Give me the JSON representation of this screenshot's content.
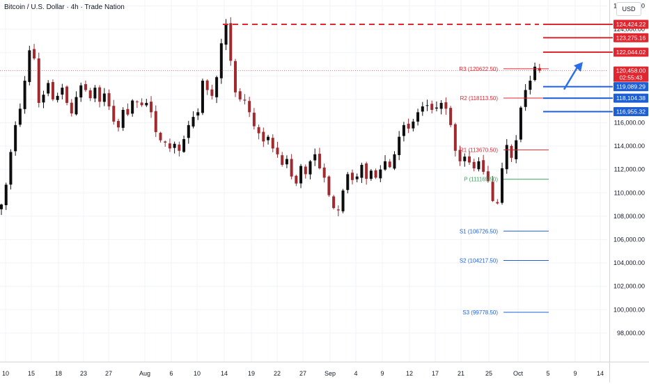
{
  "chart_title": "Bitcoin / U.S. Dollar · 4h · Trade Nation",
  "currency": "USD",
  "colors": {
    "up": "#0d0d0d",
    "down": "#a12a2e",
    "resistance": "#e0262f",
    "support": "#1f5fd6",
    "pivot": "#3aa35c",
    "grid": "#f0f3fa"
  },
  "chart_data": {
    "type": "candlestick",
    "title": "Bitcoin / U.S. Dollar · 4h · Trade Nation",
    "ylim": [
      96700,
      126800
    ],
    "yticks": [
      "126,000.00",
      "124,000.00",
      "122,000.00",
      "120,000.00",
      "118,000.00",
      "116,000.00",
      "114,000.00",
      "112,000.00",
      "110,000.00",
      "108,000.00",
      "106,000.00",
      "104,000.00",
      "102,000.00",
      "100,000.00",
      "98,000.00"
    ],
    "x_ticks": [
      "10",
      "15",
      "18",
      "23",
      "27",
      "Aug",
      "6",
      "10",
      "14",
      "19",
      "22",
      "27",
      "Sep",
      "4",
      "9",
      "12",
      "17",
      "21",
      "25",
      "Oct",
      "5",
      "9",
      "14"
    ],
    "price_path": [
      [
        0,
        109000
      ],
      [
        1,
        110700
      ],
      [
        2,
        113500
      ],
      [
        3,
        115800
      ],
      [
        4,
        117200
      ],
      [
        5,
        119600
      ],
      [
        6,
        122200
      ],
      [
        7,
        121500
      ],
      [
        8,
        117700
      ],
      [
        9,
        118400
      ],
      [
        10,
        119400
      ],
      [
        11,
        118000
      ],
      [
        12,
        118300
      ],
      [
        13,
        119000
      ],
      [
        14,
        117700
      ],
      [
        15,
        116800
      ],
      [
        16,
        118200
      ],
      [
        17,
        119200
      ],
      [
        18,
        118800
      ],
      [
        19,
        118100
      ],
      [
        20,
        119000
      ],
      [
        21,
        117800
      ],
      [
        22,
        118500
      ],
      [
        23,
        117400
      ],
      [
        24,
        116100
      ],
      [
        25,
        115600
      ],
      [
        26,
        117100
      ],
      [
        27,
        116700
      ],
      [
        28,
        117900
      ],
      [
        29,
        117800
      ],
      [
        30,
        117500
      ],
      [
        31,
        117700
      ],
      [
        32,
        116900
      ],
      [
        33,
        115200
      ],
      [
        34,
        114500
      ],
      [
        35,
        114300
      ],
      [
        36,
        113800
      ],
      [
        37,
        114200
      ],
      [
        38,
        113600
      ],
      [
        39,
        114600
      ],
      [
        40,
        115800
      ],
      [
        41,
        116500
      ],
      [
        42,
        116900
      ],
      [
        43,
        119600
      ],
      [
        44,
        118800
      ],
      [
        45,
        118300
      ],
      [
        46,
        119900
      ],
      [
        47,
        122800
      ],
      [
        48,
        124400
      ],
      [
        49,
        121300
      ],
      [
        50,
        118600
      ],
      [
        51,
        118000
      ],
      [
        52,
        117900
      ],
      [
        53,
        116900
      ],
      [
        54,
        115700
      ],
      [
        55,
        115100
      ],
      [
        56,
        114400
      ],
      [
        57,
        114800
      ],
      [
        58,
        113800
      ],
      [
        59,
        113300
      ],
      [
        60,
        112400
      ],
      [
        61,
        112900
      ],
      [
        62,
        111400
      ],
      [
        63,
        110800
      ],
      [
        64,
        112300
      ],
      [
        65,
        111600
      ],
      [
        66,
        112700
      ],
      [
        67,
        113300
      ],
      [
        68,
        112100
      ],
      [
        69,
        111300
      ],
      [
        70,
        109800
      ],
      [
        71,
        108700
      ],
      [
        72,
        108500
      ],
      [
        73,
        110200
      ],
      [
        74,
        111600
      ],
      [
        75,
        111100
      ],
      [
        76,
        111400
      ],
      [
        77,
        112400
      ],
      [
        78,
        111200
      ],
      [
        79,
        111900
      ],
      [
        80,
        111300
      ],
      [
        81,
        112000
      ],
      [
        82,
        112700
      ],
      [
        83,
        112200
      ],
      [
        84,
        113300
      ],
      [
        85,
        114800
      ],
      [
        86,
        115800
      ],
      [
        87,
        115500
      ],
      [
        88,
        116100
      ],
      [
        89,
        116900
      ],
      [
        90,
        117400
      ],
      [
        91,
        117500
      ],
      [
        92,
        117100
      ],
      [
        93,
        117300
      ],
      [
        94,
        117700
      ],
      [
        95,
        117200
      ],
      [
        96,
        115800
      ],
      [
        97,
        113600
      ],
      [
        98,
        112700
      ],
      [
        99,
        113100
      ],
      [
        100,
        112600
      ],
      [
        101,
        112100
      ],
      [
        102,
        112700
      ],
      [
        103,
        111800
      ],
      [
        104,
        111000
      ],
      [
        105,
        109300
      ],
      [
        106,
        109100
      ],
      [
        107,
        112100
      ],
      [
        108,
        114100
      ],
      [
        109,
        113000
      ],
      [
        110,
        114500
      ],
      [
        111,
        117300
      ],
      [
        112,
        118800
      ],
      [
        113,
        119600
      ],
      [
        114,
        120800
      ],
      [
        115,
        120458
      ]
    ],
    "pivot_levels": [
      {
        "label": "R3 (120622.50)",
        "value": 120622.5,
        "kind": "resistance"
      },
      {
        "label": "R2 (118113.50)",
        "value": 118113.5,
        "kind": "resistance"
      },
      {
        "label": "R1 (113670.50)",
        "value": 113670.5,
        "kind": "resistance",
        "shown_label": "R1 (113670.50)"
      },
      {
        "label": "P (111165.50)",
        "value": 111165.5,
        "kind": "pivot"
      },
      {
        "label": "S1 (106726.50)",
        "value": 106726.5,
        "kind": "support"
      },
      {
        "label": "S2 (104217.50)",
        "value": 104217.5,
        "kind": "support"
      },
      {
        "label": "S3 (99778.50)",
        "value": 99778.5,
        "kind": "support"
      }
    ],
    "key_levels": [
      {
        "value": 124424.22,
        "label": "124,424.22",
        "kind": "resistance",
        "dashed": true
      },
      {
        "value": 123275.16,
        "label": "123,275.16",
        "kind": "resistance"
      },
      {
        "value": 122044.02,
        "label": "122,044.02",
        "kind": "resistance"
      },
      {
        "value": 119089.29,
        "label": "119,089.29",
        "kind": "support"
      },
      {
        "value": 118104.38,
        "label": "118,104.38",
        "kind": "support"
      },
      {
        "value": 116955.32,
        "label": "116,955.32",
        "kind": "support"
      }
    ],
    "current_price": {
      "value": 120458.0,
      "label": "120,458.00",
      "countdown": "02:55:43"
    },
    "forecast_arrow": {
      "from": 119089.29,
      "to": 121200,
      "direction": "up"
    }
  }
}
